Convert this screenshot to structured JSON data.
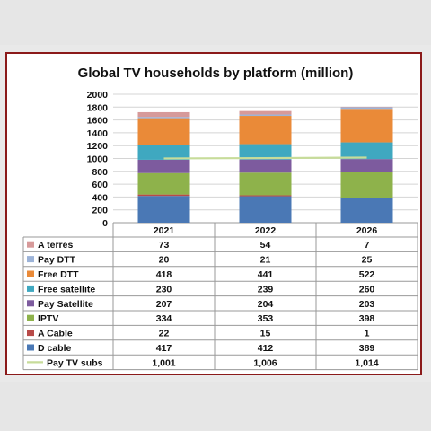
{
  "chart_data": {
    "type": "bar",
    "stacked": true,
    "title": "Global TV households by platform (million)",
    "categories": [
      "2021",
      "2022",
      "2026"
    ],
    "ylim": [
      0,
      2000
    ],
    "yticks": [
      0,
      200,
      400,
      600,
      800,
      1000,
      1200,
      1400,
      1600,
      1800,
      2000
    ],
    "grid": true,
    "series": [
      {
        "name": "D cable",
        "values": [
          417,
          412,
          389
        ],
        "color": "#4a78b5"
      },
      {
        "name": "A Cable",
        "values": [
          22,
          15,
          1
        ],
        "color": "#b84a48"
      },
      {
        "name": "IPTV",
        "values": [
          334,
          353,
          398
        ],
        "color": "#8eb24b"
      },
      {
        "name": "Pay Satellite",
        "values": [
          207,
          204,
          203
        ],
        "color": "#7d5b9e"
      },
      {
        "name": "Free satellite",
        "values": [
          230,
          239,
          260
        ],
        "color": "#3fa8c0"
      },
      {
        "name": "Free DTT",
        "values": [
          418,
          441,
          522
        ],
        "color": "#ea8a38"
      },
      {
        "name": "Pay DTT",
        "values": [
          20,
          21,
          25
        ],
        "color": "#9cb3d8"
      },
      {
        "name": "A terres",
        "values": [
          73,
          54,
          7
        ],
        "color": "#d79a9a"
      }
    ],
    "line_series": {
      "name": "Pay TV subs",
      "values": [
        1001,
        1006,
        1014
      ],
      "color": "#c7dc9a"
    },
    "table": {
      "columns": [
        "2021",
        "2022",
        "2026"
      ],
      "rows": [
        {
          "name": "A terres",
          "color": "#d79a9a",
          "marker": "square",
          "cells": [
            "73",
            "54",
            "7"
          ]
        },
        {
          "name": "Pay DTT",
          "color": "#9cb3d8",
          "marker": "square",
          "cells": [
            "20",
            "21",
            "25"
          ]
        },
        {
          "name": "Free DTT",
          "color": "#ea8a38",
          "marker": "square",
          "cells": [
            "418",
            "441",
            "522"
          ]
        },
        {
          "name": "Free satellite",
          "color": "#3fa8c0",
          "marker": "square",
          "cells": [
            "230",
            "239",
            "260"
          ]
        },
        {
          "name": "Pay Satellite",
          "color": "#7d5b9e",
          "marker": "square",
          "cells": [
            "207",
            "204",
            "203"
          ]
        },
        {
          "name": "IPTV",
          "color": "#8eb24b",
          "marker": "square",
          "cells": [
            "334",
            "353",
            "398"
          ]
        },
        {
          "name": "A Cable",
          "color": "#b84a48",
          "marker": "square",
          "cells": [
            "22",
            "15",
            "1"
          ]
        },
        {
          "name": "D cable",
          "color": "#4a78b5",
          "marker": "square",
          "cells": [
            "417",
            "412",
            "389"
          ]
        },
        {
          "name": "Pay TV subs",
          "color": "#c7dc9a",
          "marker": "line",
          "cells": [
            "1,001",
            "1,006",
            "1,014"
          ]
        }
      ]
    }
  }
}
